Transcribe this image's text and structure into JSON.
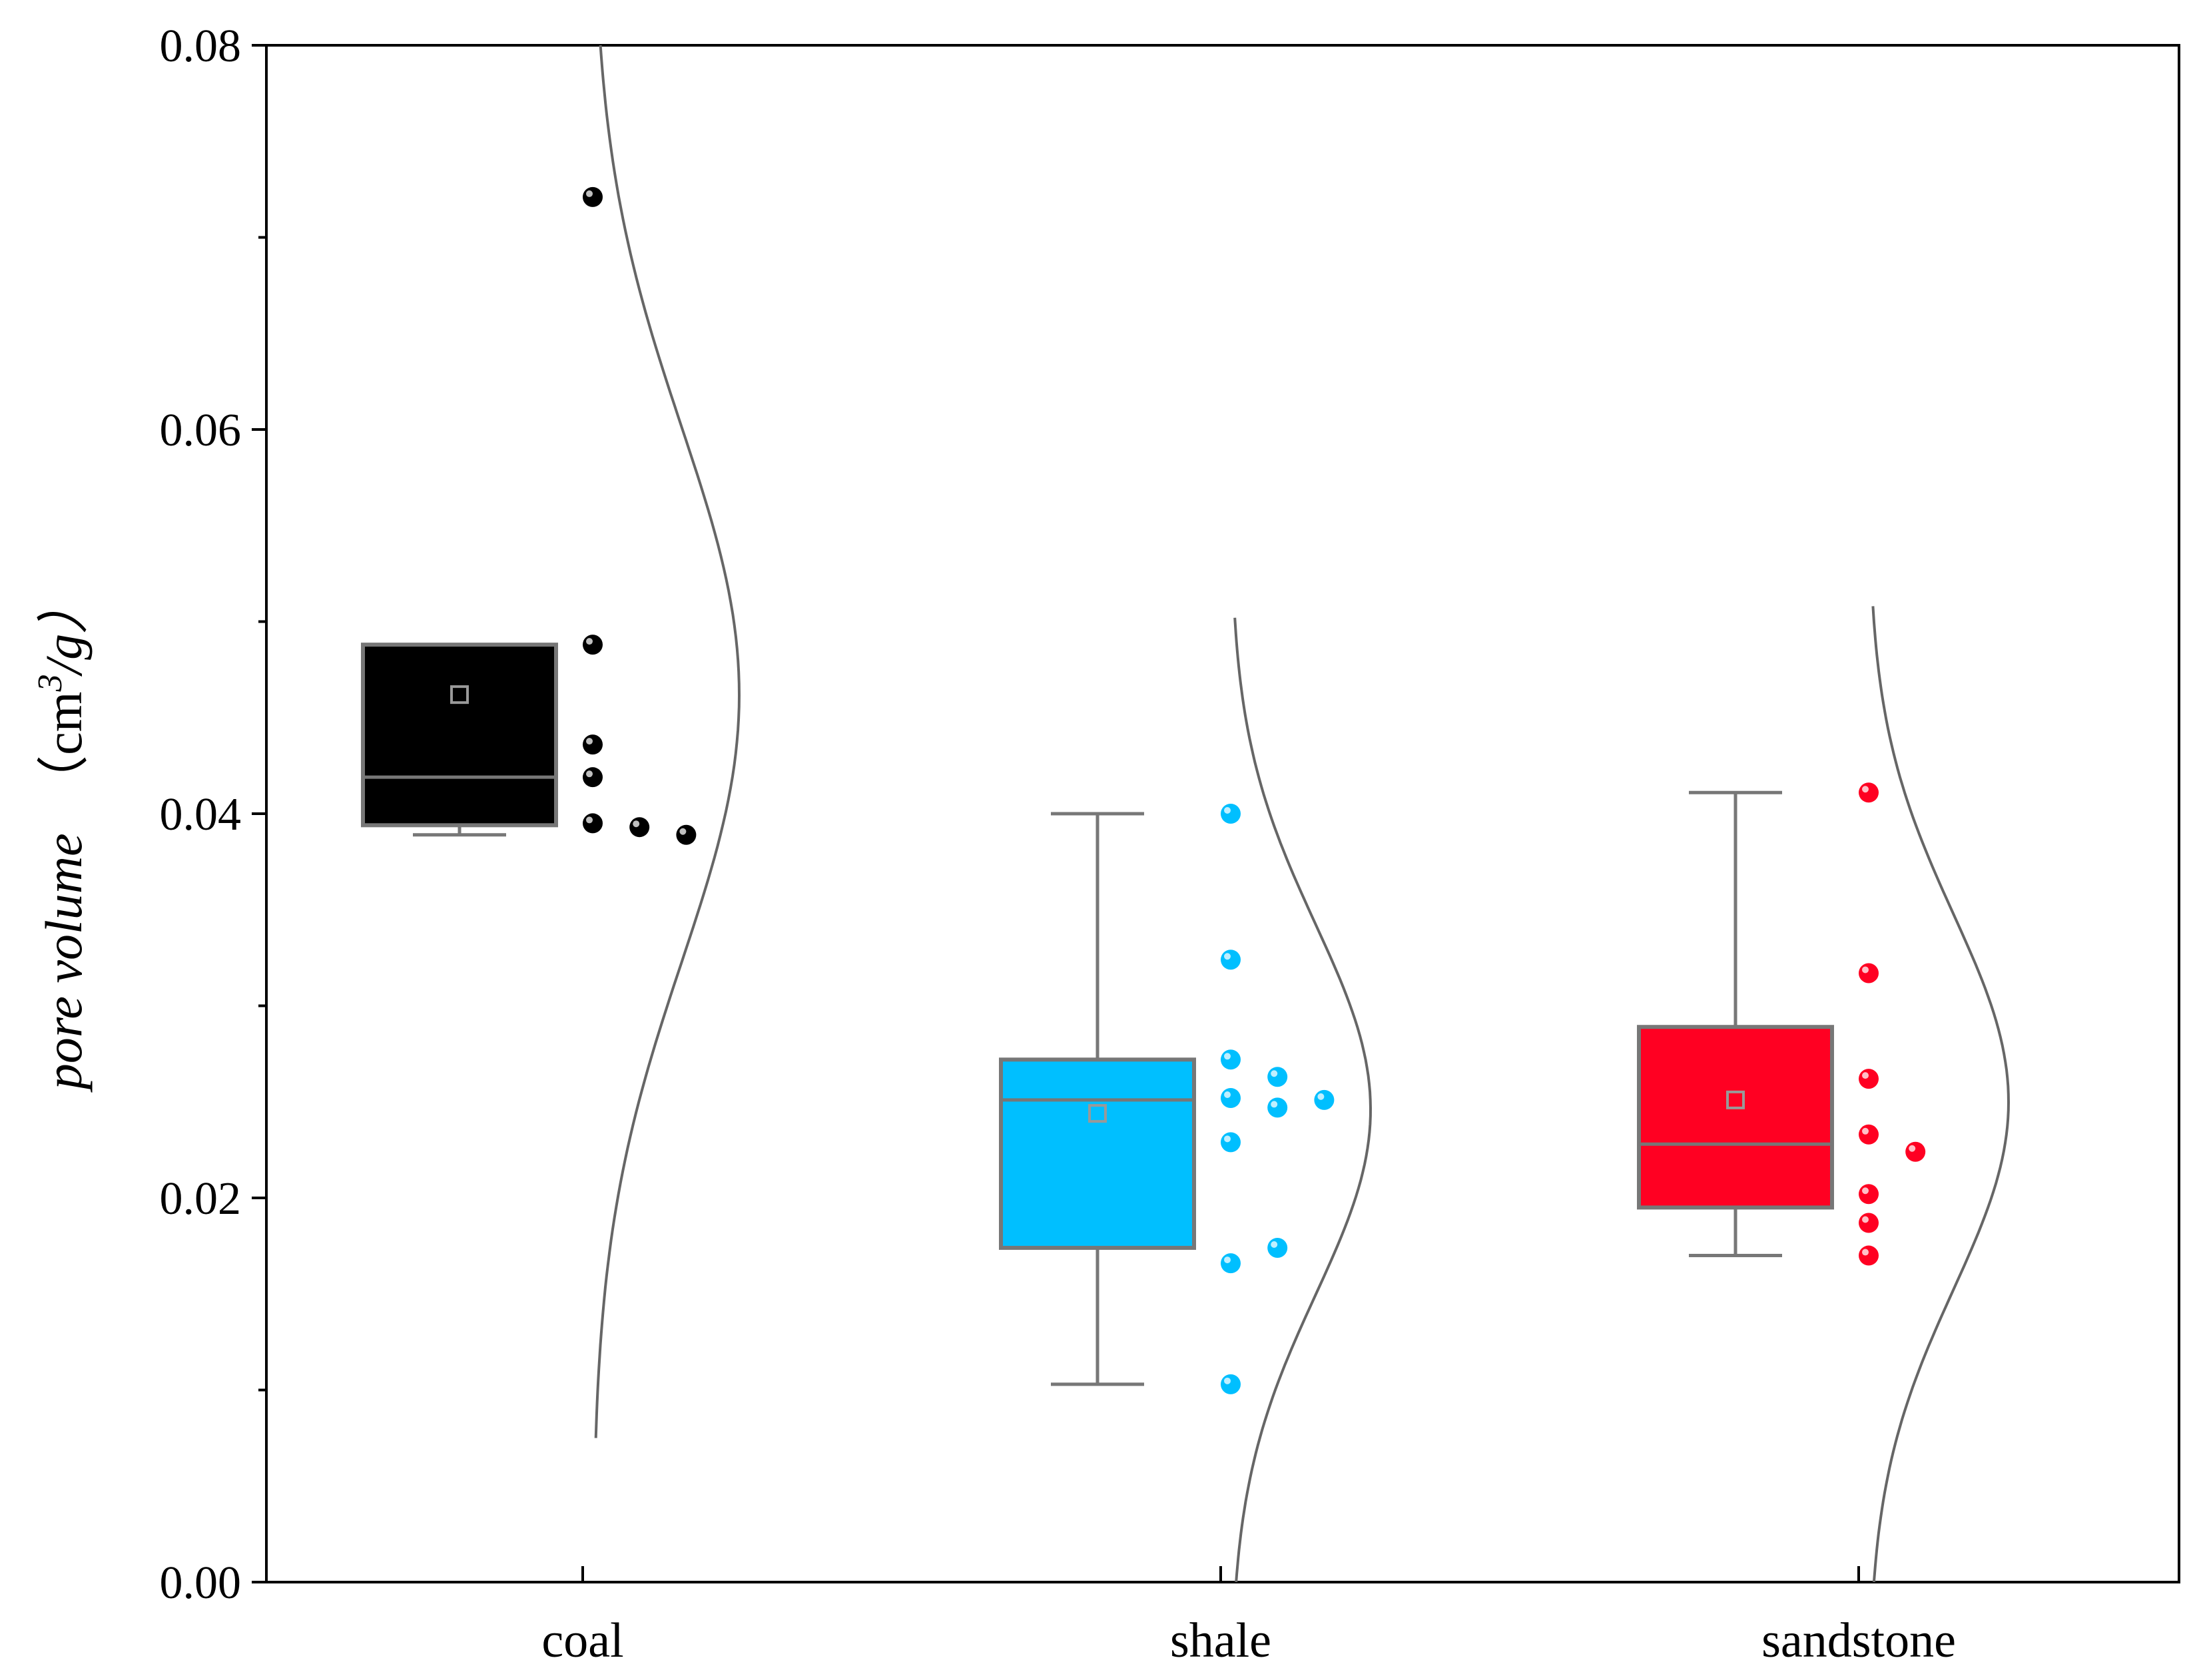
{
  "chart_data": {
    "type": "box",
    "xlabel": "",
    "ylabel": {
      "main": "pore volume",
      "unit_prefix": "（cm",
      "unit_superscript": "3",
      "unit_suffix": "/g）"
    },
    "ylim": [
      0,
      0.08
    ],
    "yticks": [
      0.0,
      0.02,
      0.04,
      0.06,
      0.08
    ],
    "ytick_labels": [
      "0.00",
      "0.02",
      "0.04",
      "0.06",
      "0.08"
    ],
    "categories": [
      "coal",
      "shale",
      "sandstone"
    ],
    "grid": false,
    "legend": "none",
    "series": [
      {
        "category": "coal",
        "color": "#000000",
        "box": {
          "q1": 0.0394,
          "median": 0.0419,
          "q3": 0.0488,
          "mean": 0.0462,
          "whisker_low": 0.0389,
          "whisker_high": 0.0488
        },
        "points": [
          0.0721,
          0.0488,
          0.0419,
          0.0395,
          0.0393,
          0.0436,
          0.0389
        ],
        "density_range": [
          0.0075,
          0.08
        ],
        "density_peak": 0.0462
      },
      {
        "category": "shale",
        "color": "#00bfff",
        "box": {
          "q1": 0.0174,
          "median": 0.0251,
          "q3": 0.0272,
          "mean": 0.0244,
          "whisker_low": 0.0103,
          "whisker_high": 0.04
        },
        "points": [
          0.04,
          0.0324,
          0.0272,
          0.0166,
          0.0252,
          0.0174,
          0.0229,
          0.0103,
          0.0263,
          0.0251,
          0.0247
        ],
        "density_range": [
          0.0,
          0.0502
        ],
        "density_peak": 0.0246
      },
      {
        "category": "sandstone",
        "color": "#ff0022",
        "box": {
          "q1": 0.0195,
          "median": 0.0228,
          "q3": 0.0289,
          "mean": 0.0251,
          "whisker_low": 0.017,
          "whisker_high": 0.0411
        },
        "points": [
          0.0411,
          0.0317,
          0.0262,
          0.017,
          0.0233,
          0.0187,
          0.0202,
          0.0224
        ],
        "density_range": [
          0.0,
          0.0508
        ],
        "density_peak": 0.025
      }
    ]
  }
}
